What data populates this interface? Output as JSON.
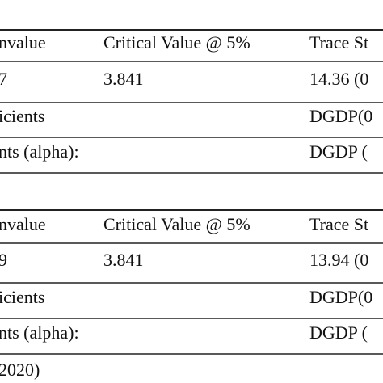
{
  "tables": [
    {
      "header": [
        "nvalue",
        "Critical Value @ 5%",
        "Trace St"
      ],
      "rows": [
        [
          "7",
          "3.841",
          "14.36 (0"
        ],
        [
          "icients",
          null,
          "DGDP(0"
        ],
        [
          "nts (alpha):",
          null,
          "DGDP ("
        ]
      ]
    },
    {
      "header": [
        "nvalue",
        "Critical Value @ 5%",
        "Trace St"
      ],
      "rows": [
        [
          "9",
          "3.841",
          "13.94 (0"
        ],
        [
          "icients",
          null,
          "DGDP(0"
        ],
        [
          "nts (alpha):",
          null,
          "DGDP ("
        ]
      ]
    }
  ],
  "note": "2020)"
}
